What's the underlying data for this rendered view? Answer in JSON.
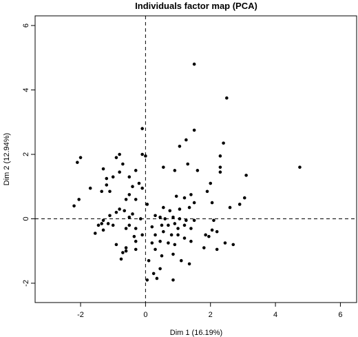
{
  "chart_data": {
    "type": "scatter",
    "title": "Individuals factor map (PCA)",
    "xlabel": "Dim 1 (16.19%)",
    "ylabel": "Dim 2 (12.94%)",
    "xlim": [
      -3.4,
      6.5
    ],
    "ylim": [
      -2.6,
      6.3
    ],
    "xticks": [
      -2,
      0,
      2,
      4,
      6
    ],
    "yticks": [
      -2,
      0,
      2,
      4,
      6
    ],
    "reference_lines": {
      "x": 0,
      "y": 0,
      "style": "dashed"
    },
    "grid": false,
    "legend": "none",
    "colors": {
      "points": "#000000",
      "axes": "#000000",
      "background": "#ffffff"
    },
    "series": [
      {
        "points": [
          [
            1.5,
            4.8
          ],
          [
            2.5,
            3.75
          ],
          [
            2.4,
            2.35
          ],
          [
            1.5,
            2.75
          ],
          [
            2.3,
            1.95
          ],
          [
            -0.1,
            2.8
          ],
          [
            1.05,
            2.25
          ],
          [
            1.25,
            2.45
          ],
          [
            -0.1,
            2.0
          ],
          [
            0.0,
            1.95
          ],
          [
            -0.8,
            2.0
          ],
          [
            -0.9,
            1.9
          ],
          [
            -0.7,
            1.7
          ],
          [
            -2.0,
            1.9
          ],
          [
            -2.1,
            1.75
          ],
          [
            -0.3,
            1.5
          ],
          [
            -1.3,
            1.55
          ],
          [
            -0.8,
            1.45
          ],
          [
            -0.5,
            1.3
          ],
          [
            -1.2,
            1.25
          ],
          [
            -1.0,
            1.3
          ],
          [
            -0.2,
            1.1
          ],
          [
            -1.2,
            1.05
          ],
          [
            -0.4,
            1.0
          ],
          [
            -1.7,
            0.95
          ],
          [
            -1.35,
            0.85
          ],
          [
            -1.1,
            0.85
          ],
          [
            -0.1,
            0.95
          ],
          [
            -0.5,
            0.75
          ],
          [
            -0.3,
            0.6
          ],
          [
            -0.6,
            0.6
          ],
          [
            -2.05,
            0.6
          ],
          [
            -2.2,
            0.4
          ],
          [
            -0.8,
            0.3
          ],
          [
            -0.65,
            0.25
          ],
          [
            0.05,
            0.45
          ],
          [
            0.55,
            1.6
          ],
          [
            0.9,
            1.5
          ],
          [
            1.3,
            1.7
          ],
          [
            1.6,
            1.5
          ],
          [
            2.3,
            1.6
          ],
          [
            2.3,
            1.45
          ],
          [
            3.1,
            1.35
          ],
          [
            4.75,
            1.6
          ],
          [
            2.0,
            1.1
          ],
          [
            1.9,
            0.85
          ],
          [
            1.4,
            0.75
          ],
          [
            0.95,
            0.7
          ],
          [
            1.2,
            0.65
          ],
          [
            3.05,
            0.65
          ],
          [
            2.9,
            0.45
          ],
          [
            2.6,
            0.35
          ],
          [
            2.05,
            0.5
          ],
          [
            1.5,
            0.5
          ],
          [
            1.35,
            0.35
          ],
          [
            1.05,
            0.3
          ],
          [
            0.75,
            0.25
          ],
          [
            0.55,
            0.35
          ],
          [
            -0.9,
            0.2
          ],
          [
            -1.1,
            0.1
          ],
          [
            -0.4,
            0.15
          ],
          [
            -0.5,
            0.05
          ],
          [
            -0.15,
            0.0
          ],
          [
            0.3,
            0.1
          ],
          [
            0.45,
            0.05
          ],
          [
            0.6,
            0.0
          ],
          [
            0.85,
            0.05
          ],
          [
            1.05,
            0.0
          ],
          [
            1.25,
            -0.05
          ],
          [
            1.5,
            -0.05
          ],
          [
            2.1,
            -0.05
          ],
          [
            -1.3,
            -0.05
          ],
          [
            -1.35,
            -0.15
          ],
          [
            -1.45,
            -0.2
          ],
          [
            -1.15,
            -0.15
          ],
          [
            -1.0,
            -0.2
          ],
          [
            -0.5,
            -0.2
          ],
          [
            -0.6,
            -0.3
          ],
          [
            -0.3,
            -0.3
          ],
          [
            0.2,
            -0.25
          ],
          [
            0.5,
            -0.2
          ],
          [
            0.7,
            -0.2
          ],
          [
            0.9,
            -0.15
          ],
          [
            1.2,
            -0.2
          ],
          [
            1.4,
            -0.3
          ],
          [
            1.0,
            -0.3
          ],
          [
            2.05,
            -0.35
          ],
          [
            1.85,
            -0.5
          ],
          [
            1.95,
            -0.55
          ],
          [
            2.2,
            -0.4
          ],
          [
            -1.55,
            -0.45
          ],
          [
            -1.3,
            -0.35
          ],
          [
            -0.35,
            -0.55
          ],
          [
            -0.1,
            -0.5
          ],
          [
            0.3,
            -0.5
          ],
          [
            0.55,
            -0.4
          ],
          [
            0.8,
            -0.5
          ],
          [
            1.0,
            -0.5
          ],
          [
            1.2,
            -0.6
          ],
          [
            1.4,
            -0.7
          ],
          [
            2.45,
            -0.75
          ],
          [
            2.7,
            -0.8
          ],
          [
            -0.9,
            -0.8
          ],
          [
            -0.6,
            -0.9
          ],
          [
            -0.3,
            -0.7
          ],
          [
            -0.3,
            -0.95
          ],
          [
            0.2,
            -0.75
          ],
          [
            0.45,
            -0.7
          ],
          [
            0.7,
            -0.75
          ],
          [
            0.9,
            -0.8
          ],
          [
            1.8,
            -0.9
          ],
          [
            2.2,
            -0.95
          ],
          [
            -0.7,
            -1.05
          ],
          [
            -0.6,
            -1.0
          ],
          [
            0.3,
            -0.95
          ],
          [
            0.5,
            -1.15
          ],
          [
            0.85,
            -1.1
          ],
          [
            -0.75,
            -1.25
          ],
          [
            0.1,
            -1.3
          ],
          [
            1.1,
            -1.3
          ],
          [
            1.35,
            -1.4
          ],
          [
            0.45,
            -1.55
          ],
          [
            0.25,
            -1.7
          ],
          [
            0.35,
            -1.85
          ],
          [
            0.05,
            -1.9
          ],
          [
            0.85,
            -1.9
          ]
        ]
      }
    ]
  }
}
